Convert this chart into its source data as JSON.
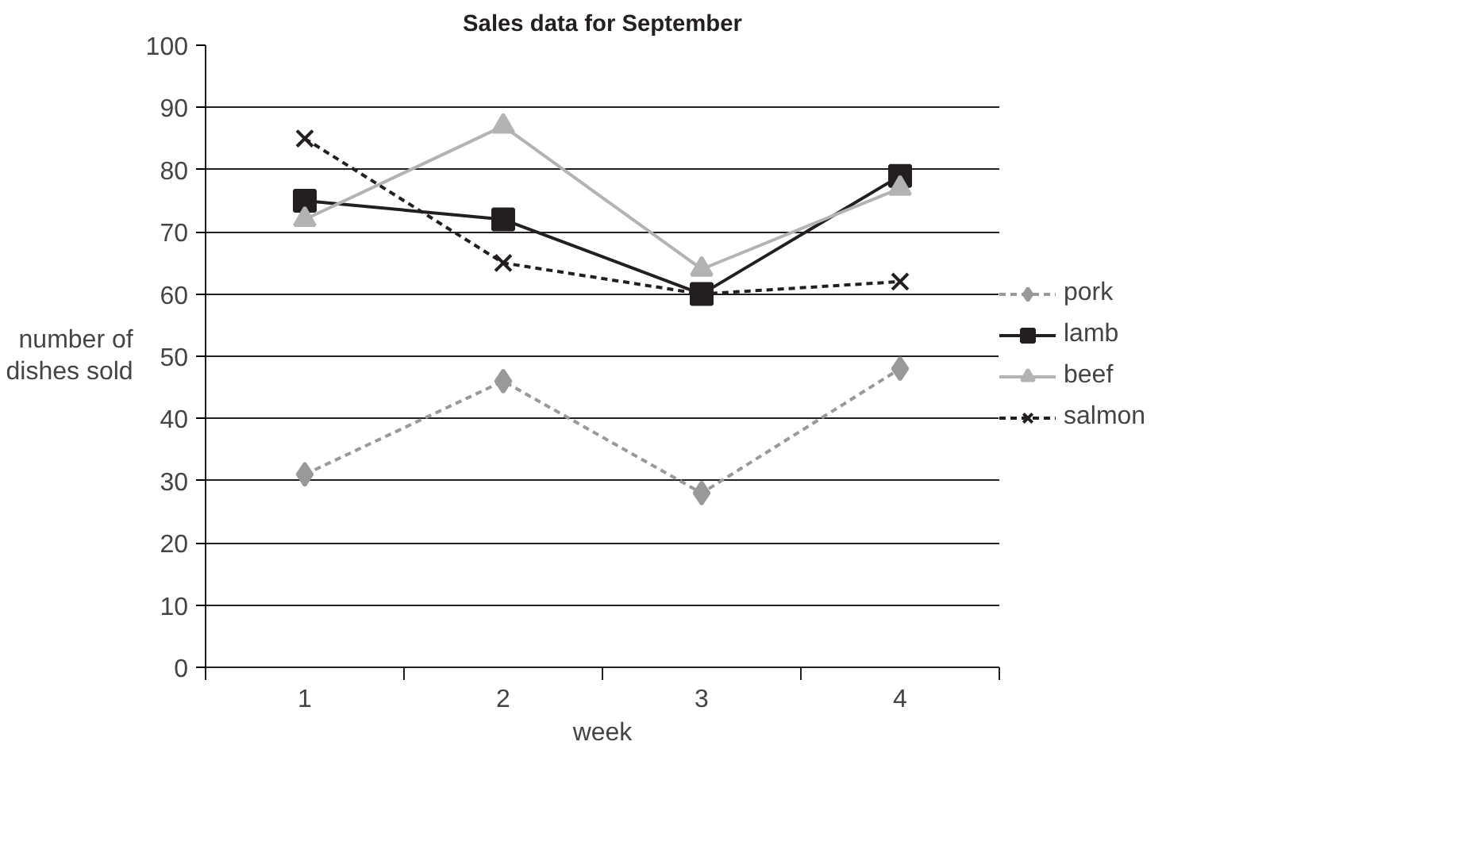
{
  "chart_data": {
    "type": "line",
    "title": "Sales data for September",
    "xlabel": "week",
    "ylabel": "number of dishes sold",
    "categories": [
      "1",
      "2",
      "3",
      "4"
    ],
    "series": [
      {
        "name": "pork",
        "color": "#999999",
        "values": [
          31,
          46,
          28,
          48
        ],
        "marker": "diamond",
        "line_style": "dashed"
      },
      {
        "name": "lamb",
        "color": "#231f20",
        "values": [
          75,
          72,
          60,
          79
        ],
        "marker": "square",
        "line_style": "solid"
      },
      {
        "name": "beef",
        "color": "#b3b3b3",
        "values": [
          72,
          87,
          64,
          77
        ],
        "marker": "triangle",
        "line_style": "solid"
      },
      {
        "name": "salmon",
        "color": "#231f20",
        "values": [
          85,
          65,
          60,
          62
        ],
        "marker": "cross",
        "line_style": "dashed"
      }
    ],
    "ylim": [
      0,
      100
    ],
    "yticks": [
      0,
      10,
      20,
      30,
      40,
      50,
      60,
      70,
      80,
      90,
      100
    ],
    "grid": "y",
    "legend": "right"
  }
}
